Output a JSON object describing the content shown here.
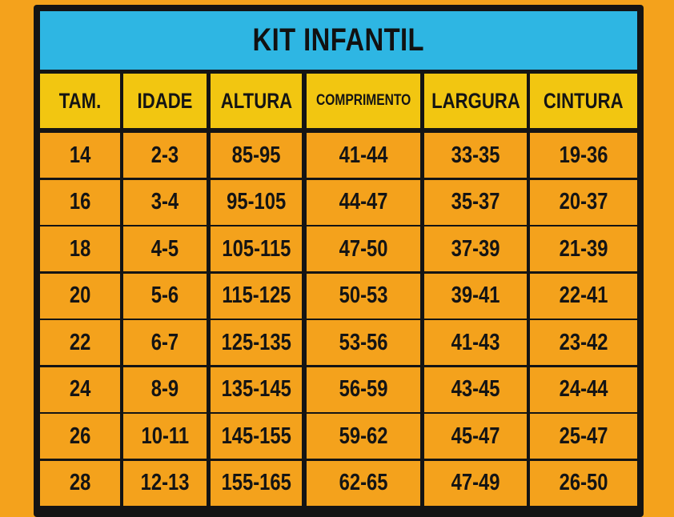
{
  "title": "KIT INFANTIL",
  "columns": [
    "TAM.",
    "IDADE",
    "ALTURA",
    "COMPRIMENTO",
    "LARGURA",
    "CINTURA"
  ],
  "rows": [
    [
      "14",
      "2-3",
      "85-95",
      "41-44",
      "33-35",
      "19-36"
    ],
    [
      "16",
      "3-4",
      "95-105",
      "44-47",
      "35-37",
      "20-37"
    ],
    [
      "18",
      "4-5",
      "105-115",
      "47-50",
      "37-39",
      "21-39"
    ],
    [
      "20",
      "5-6",
      "115-125",
      "50-53",
      "39-41",
      "22-41"
    ],
    [
      "22",
      "6-7",
      "125-135",
      "53-56",
      "41-43",
      "23-42"
    ],
    [
      "24",
      "8-9",
      "135-145",
      "56-59",
      "43-45",
      "24-44"
    ],
    [
      "26",
      "10-11",
      "145-155",
      "59-62",
      "45-47",
      "25-47"
    ],
    [
      "28",
      "12-13",
      "155-165",
      "62-65",
      "47-49",
      "26-50"
    ]
  ],
  "colors": {
    "background": "#f4a21c",
    "frame": "#141414",
    "title_bar": "#2eb6e3",
    "header_cells": "#f2c611",
    "body_cells": "#f4a21c"
  }
}
